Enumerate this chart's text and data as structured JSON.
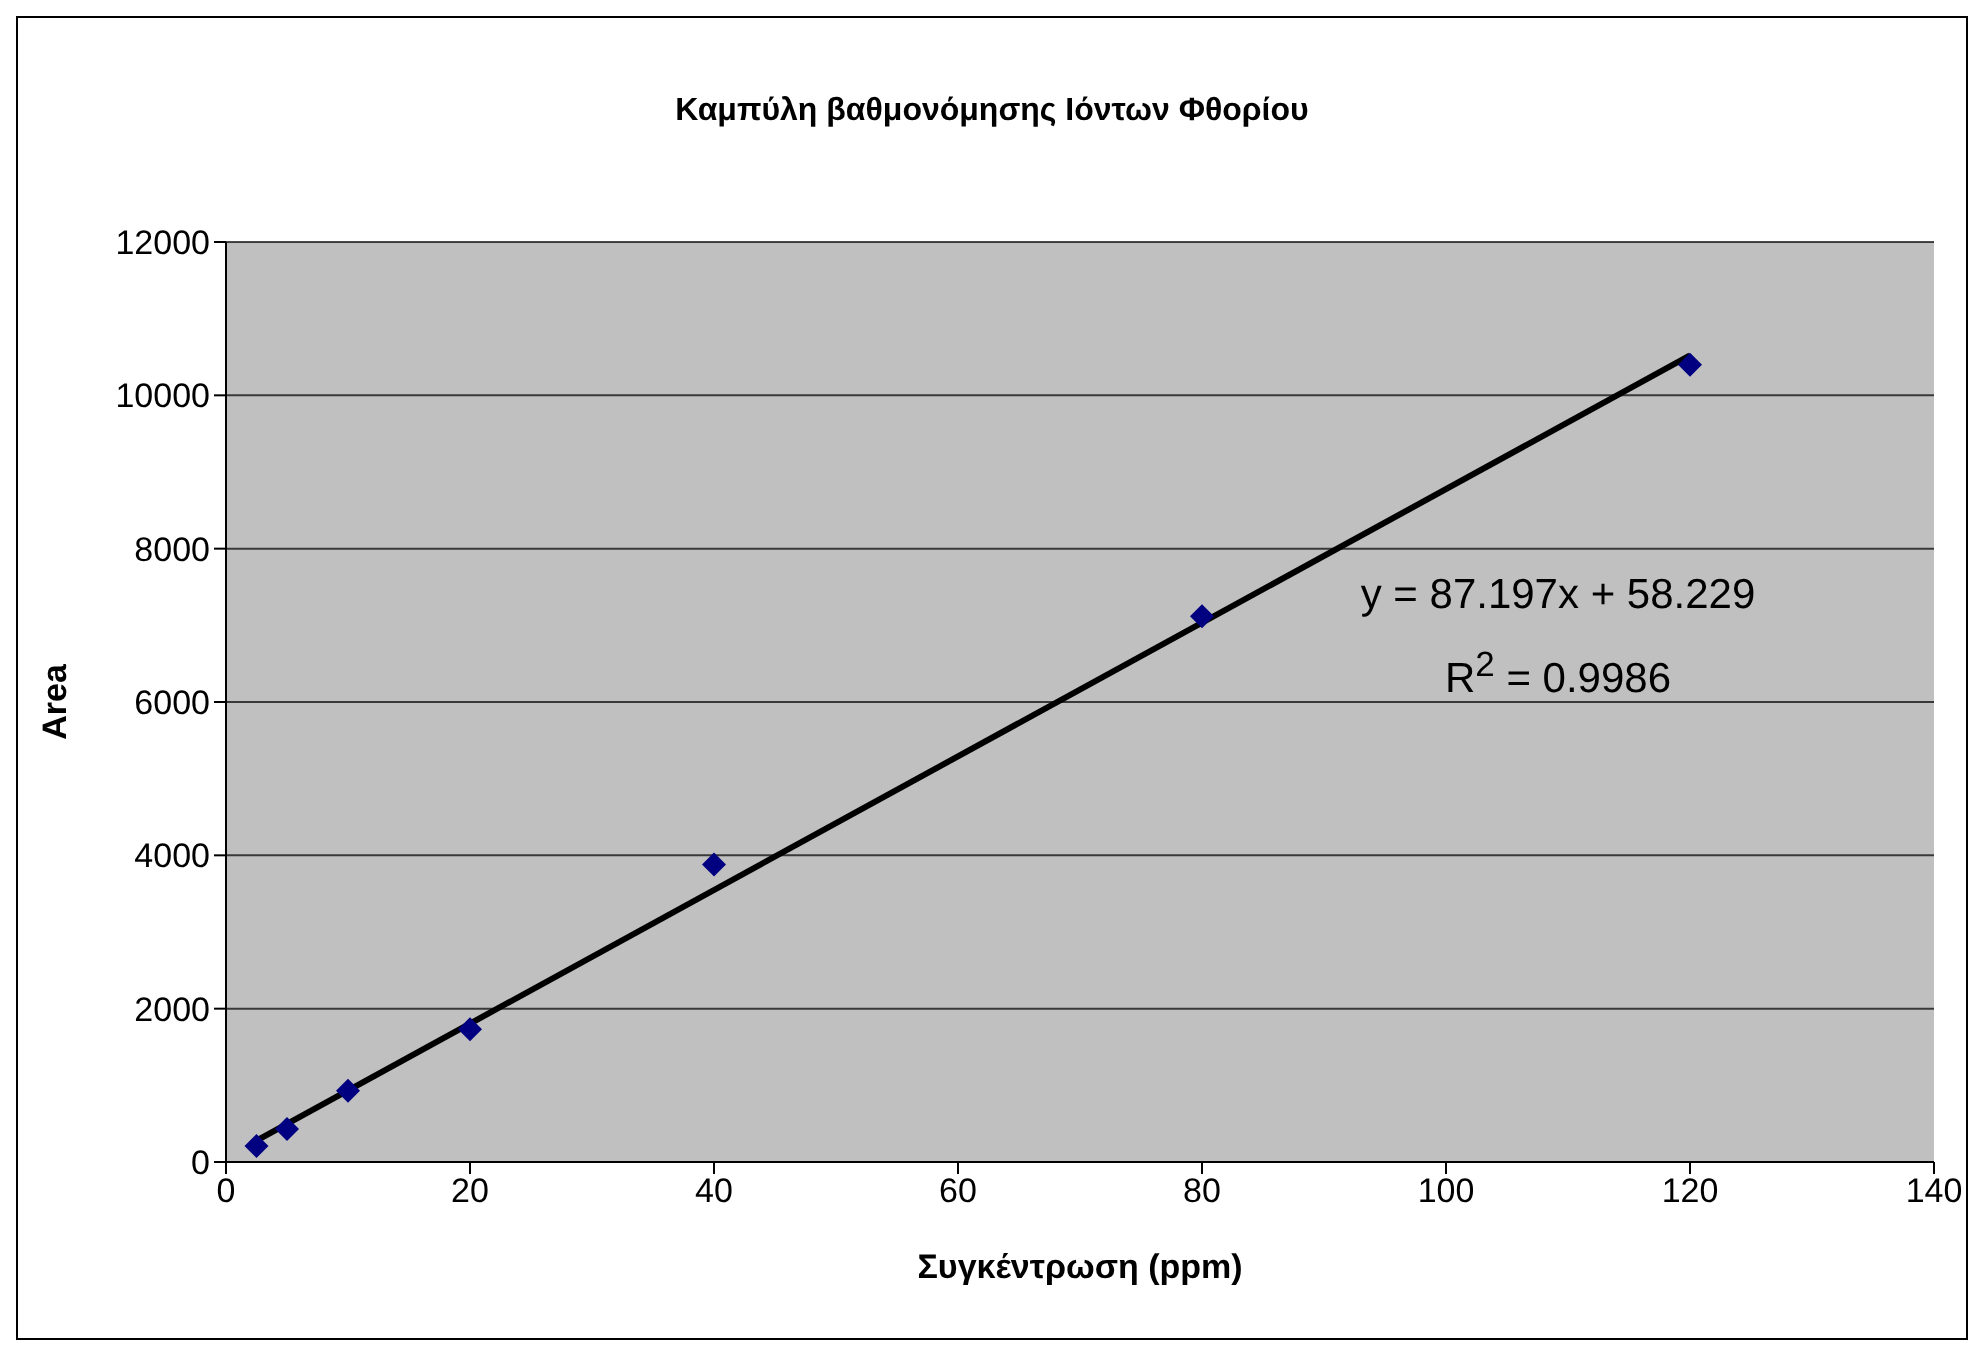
{
  "chart_data": {
    "type": "scatter",
    "title": "Καμπύλη βαθμονόμησης Ιόντων Φθορίου",
    "xlabel": "Συγκέντρωση (ppm)",
    "ylabel": "Area",
    "x": [
      2.5,
      5,
      10,
      20,
      40,
      80,
      120
    ],
    "series": [
      {
        "color": "#000080",
        "values": [
          210,
          430,
          930,
          1730,
          3880,
          7120,
          10400
        ],
        "marker": "diamond"
      },
      {
        "type": "line",
        "color": "#000000",
        "x": [
          2.5,
          120
        ],
        "values": [
          280,
          10520
        ],
        "marker": "none"
      }
    ],
    "xlim": [
      0,
      140
    ],
    "xticks": [
      0,
      20,
      40,
      60,
      80,
      100,
      120,
      140
    ],
    "ylim": [
      0,
      12000
    ],
    "yticks": [
      0,
      2000,
      4000,
      6000,
      8000,
      10000,
      12000
    ],
    "grid": "y",
    "annotations": [
      "y = 87.197x + 58.229",
      "R$^{2}$ = 0.9986"
    ]
  }
}
